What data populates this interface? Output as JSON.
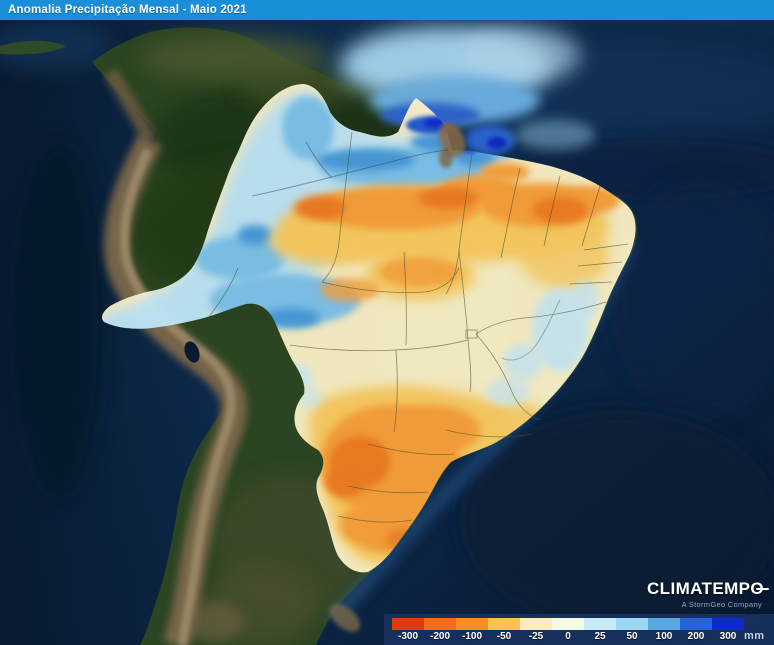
{
  "header": {
    "title": "Anomalia Precipitação Mensal - Maio 2021",
    "bg_color": "#1a8fd9",
    "text_color": "#ffffff"
  },
  "legend": {
    "unit": "mm",
    "stops": [
      {
        "label": "-300",
        "color": "#e03a10"
      },
      {
        "label": "-200",
        "color": "#f26e1a"
      },
      {
        "label": "-100",
        "color": "#f78e22"
      },
      {
        "label": "-50",
        "color": "#fbc14f"
      },
      {
        "label": "-25",
        "color": "#fcecbe"
      },
      {
        "label": "0",
        "color": "#f2f9e4"
      },
      {
        "label": "25",
        "color": "#c7ebf5"
      },
      {
        "label": "50",
        "color": "#9bd7f0"
      },
      {
        "label": "100",
        "color": "#57a7e0"
      },
      {
        "label": "200",
        "color": "#2362d8"
      },
      {
        "label": "300",
        "color": "#0b2cc8"
      }
    ]
  },
  "branding": {
    "name_main": "CLIMATEMP",
    "name_o": "O",
    "tagline": "A StormGeo Company"
  }
}
